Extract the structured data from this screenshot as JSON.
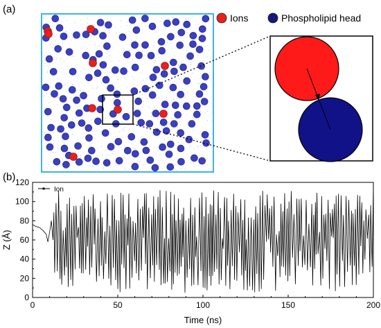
{
  "panel_a": {
    "label": "(a)",
    "legend": [
      {
        "label": "Ions",
        "color": "#e8201e"
      },
      {
        "label": "Phospholipid head",
        "color": "#16187e"
      }
    ],
    "colors": {
      "frame": "#3fb2e6",
      "ion": "#e8201e",
      "head": "#16187e",
      "head_sphere": "#3a3fc4"
    }
  },
  "panel_b": {
    "label": "(b)"
  },
  "chart_data": {
    "type": "line",
    "title": "",
    "xlabel": "Time (ns)",
    "ylabel": "Z (Å)",
    "xlim": [
      0,
      200
    ],
    "ylim": [
      0,
      120
    ],
    "xticks": [
      0,
      50,
      100,
      150,
      200
    ],
    "yticks": [
      0,
      20,
      40,
      60,
      80,
      100,
      120
    ],
    "grid": false,
    "legend_position": "top-left",
    "series": [
      {
        "name": "Ion",
        "color": "#000000",
        "segments": [
          {
            "t": [
              0,
              2,
              4,
              6,
              8,
              9,
              10,
              11,
              12
            ],
            "z": [
              76,
              74,
              73,
              70,
              66,
              58,
              68,
              80,
              60
            ]
          },
          {
            "t_range": [
              12.5,
              200
            ],
            "period": 1.2,
            "high_range": [
              80,
              112
            ],
            "low_range": [
              5,
              35
            ]
          }
        ]
      }
    ]
  }
}
